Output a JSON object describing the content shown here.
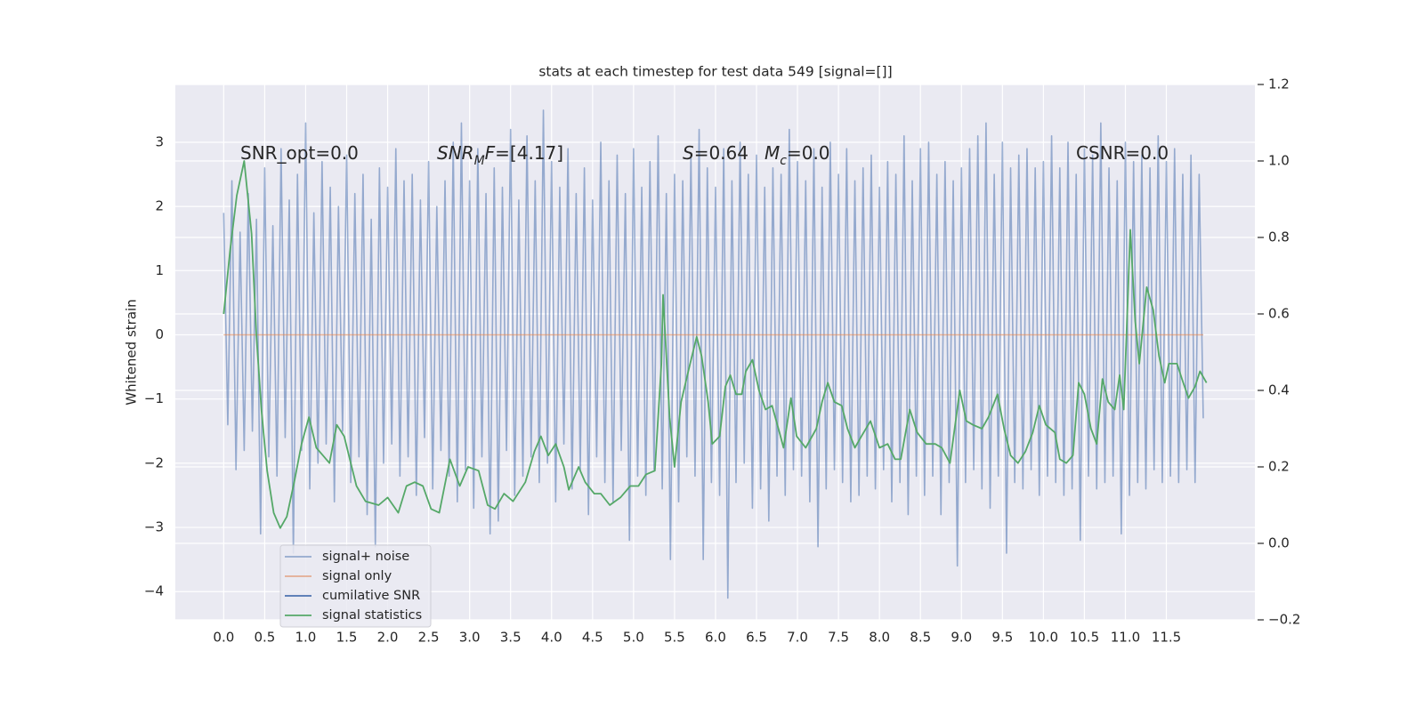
{
  "chart_data": {
    "type": "line",
    "title": "stats at each timestep for test data 549 [signal=[]]",
    "ylabel": "Whitened strain",
    "xlim": [
      -0.59,
      12.58
    ],
    "ylim": [
      -4.44,
      3.9
    ],
    "y2lim": [
      -0.2,
      1.2
    ],
    "grid": true,
    "legend": "lower left",
    "xticks": [
      {
        "value": 0,
        "label": "0.0"
      },
      {
        "value": 0.5,
        "label": "0.5"
      },
      {
        "value": 1,
        "label": "1.0"
      },
      {
        "value": 1.5,
        "label": "1.5"
      },
      {
        "value": 2,
        "label": "2.0"
      },
      {
        "value": 2.5,
        "label": "2.5"
      },
      {
        "value": 3,
        "label": "3.0"
      },
      {
        "value": 3.5,
        "label": "3.5"
      },
      {
        "value": 4,
        "label": "4.0"
      },
      {
        "value": 4.5,
        "label": "4.5"
      },
      {
        "value": 5,
        "label": "5.0"
      },
      {
        "value": 5.5,
        "label": "5.5"
      },
      {
        "value": 6,
        "label": "6.0"
      },
      {
        "value": 6.5,
        "label": "6.5"
      },
      {
        "value": 7,
        "label": "7.0"
      },
      {
        "value": 7.5,
        "label": "7.5"
      },
      {
        "value": 8,
        "label": "8.0"
      },
      {
        "value": 8.5,
        "label": "8.5"
      },
      {
        "value": 9,
        "label": "9.0"
      },
      {
        "value": 9.5,
        "label": "9.5"
      },
      {
        "value": 10,
        "label": "10.0"
      },
      {
        "value": 10.5,
        "label": "10.5"
      },
      {
        "value": 11,
        "label": "11.0"
      },
      {
        "value": 11.5,
        "label": "11.5"
      }
    ],
    "yticks": [
      {
        "value": -4,
        "label": "−4"
      },
      {
        "value": -3,
        "label": "−3"
      },
      {
        "value": -2,
        "label": "−2"
      },
      {
        "value": -1,
        "label": "−1"
      },
      0,
      1,
      2,
      3
    ],
    "y2ticks": [
      {
        "value": -0.2,
        "label": "−0.2"
      },
      {
        "value": 0,
        "label": "0.0"
      },
      0.2,
      0.4,
      0.6,
      0.8,
      {
        "value": 1,
        "label": "1.0"
      },
      1.2
    ],
    "annotations": [
      {
        "parts": [
          {
            "text": "SNR_opt=0.0"
          }
        ]
      },
      {
        "parts": [
          {
            "text": "SNR",
            "italic": true
          },
          {
            "text": "M",
            "italic": true,
            "sub": true
          },
          {
            "text": "F",
            "italic": true
          },
          {
            "text": "=[4.17]"
          }
        ]
      },
      {
        "parts": [
          {
            "text": "S",
            "italic": true
          },
          {
            "text": "=0.64"
          }
        ]
      },
      {
        "parts": [
          {
            "text": "M",
            "italic": true
          },
          {
            "text": "c",
            "italic": true,
            "sub": true
          },
          {
            "text": "=0.0"
          }
        ]
      },
      {
        "parts": [
          {
            "text": "CSNR=0.0"
          }
        ]
      }
    ],
    "series": [
      {
        "name": "signal+ noise",
        "color": "#4c72b0",
        "alpha": 0.55,
        "axis": "y",
        "x": [
          0,
          0.05,
          0.1,
          0.15,
          0.2,
          0.25,
          0.3,
          0.35,
          0.4,
          0.45,
          0.5,
          0.55,
          0.6,
          0.65,
          0.7,
          0.75,
          0.8,
          0.85,
          0.9,
          0.95,
          1,
          1.05,
          1.1,
          1.15,
          1.2,
          1.25,
          1.3,
          1.35,
          1.4,
          1.45,
          1.5,
          1.55,
          1.6,
          1.65,
          1.7,
          1.75,
          1.8,
          1.85,
          1.9,
          1.95,
          2,
          2.05,
          2.1,
          2.15,
          2.2,
          2.25,
          2.3,
          2.35,
          2.4,
          2.45,
          2.5,
          2.55,
          2.6,
          2.65,
          2.7,
          2.75,
          2.8,
          2.85,
          2.9,
          2.95,
          3,
          3.05,
          3.1,
          3.15,
          3.2,
          3.25,
          3.3,
          3.35,
          3.4,
          3.45,
          3.5,
          3.55,
          3.6,
          3.65,
          3.7,
          3.75,
          3.8,
          3.85,
          3.9,
          3.95,
          4,
          4.05,
          4.1,
          4.15,
          4.2,
          4.25,
          4.3,
          4.35,
          4.4,
          4.45,
          4.5,
          4.55,
          4.6,
          4.65,
          4.7,
          4.75,
          4.8,
          4.85,
          4.9,
          4.95,
          5,
          5.05,
          5.1,
          5.15,
          5.2,
          5.25,
          5.3,
          5.35,
          5.4,
          5.45,
          5.5,
          5.55,
          5.6,
          5.65,
          5.7,
          5.75,
          5.8,
          5.85,
          5.9,
          5.95,
          6,
          6.05,
          6.1,
          6.15,
          6.2,
          6.25,
          6.3,
          6.35,
          6.4,
          6.45,
          6.5,
          6.55,
          6.6,
          6.65,
          6.7,
          6.75,
          6.8,
          6.85,
          6.9,
          6.95,
          7,
          7.05,
          7.1,
          7.15,
          7.2,
          7.25,
          7.3,
          7.35,
          7.4,
          7.45,
          7.5,
          7.55,
          7.6,
          7.65,
          7.7,
          7.75,
          7.8,
          7.85,
          7.9,
          7.95,
          8,
          8.05,
          8.1,
          8.15,
          8.2,
          8.25,
          8.3,
          8.35,
          8.4,
          8.45,
          8.5,
          8.55,
          8.6,
          8.65,
          8.7,
          8.75,
          8.8,
          8.85,
          8.9,
          8.95,
          9,
          9.05,
          9.1,
          9.15,
          9.2,
          9.25,
          9.3,
          9.35,
          9.4,
          9.45,
          9.5,
          9.55,
          9.6,
          9.65,
          9.7,
          9.75,
          9.8,
          9.85,
          9.9,
          9.95,
          10,
          10.05,
          10.1,
          10.15,
          10.2,
          10.25,
          10.3,
          10.35,
          10.4,
          10.45,
          10.5,
          10.55,
          10.6,
          10.65,
          10.7,
          10.75,
          10.8,
          10.85,
          10.9,
          10.95,
          11,
          11.05,
          11.1,
          11.15,
          11.2,
          11.25,
          11.3,
          11.35,
          11.4,
          11.45,
          11.5,
          11.55,
          11.6,
          11.65,
          11.7,
          11.75,
          11.8,
          11.85,
          11.9,
          11.95
        ],
        "values": [
          1.9,
          -1.4,
          2.4,
          -2.1,
          1.6,
          -1.8,
          2.2,
          -1.5,
          1.8,
          -3.1,
          2.6,
          -1.9,
          1.7,
          -2.2,
          2.9,
          -1.6,
          2.1,
          -3.4,
          2.5,
          -1.8,
          3.3,
          -2.4,
          1.9,
          -2.0,
          2.7,
          -1.7,
          2.3,
          -2.6,
          2.0,
          -1.5,
          2.8,
          -2.3,
          2.2,
          -1.9,
          2.5,
          -2.8,
          1.8,
          -3.3,
          2.6,
          -2.0,
          2.3,
          -1.7,
          2.9,
          -2.2,
          2.4,
          -1.9,
          2.5,
          -2.5,
          2.1,
          -1.6,
          2.7,
          -2.4,
          2.0,
          -1.8,
          2.4,
          -2.2,
          3.0,
          -2.6,
          3.3,
          -2.1,
          2.4,
          -2.7,
          2.9,
          -1.9,
          2.2,
          -3.1,
          2.6,
          -2.9,
          2.3,
          -1.8,
          3.2,
          -2.5,
          2.1,
          -2.2,
          3.1,
          -1.9,
          2.4,
          -2.3,
          3.5,
          -2.0,
          2.7,
          -2.6,
          2.3,
          -1.7,
          2.9,
          -2.4,
          2.2,
          -2.1,
          2.6,
          -2.8,
          2.1,
          -1.9,
          3.0,
          -2.3,
          2.4,
          -2.6,
          2.8,
          -1.8,
          2.2,
          -3.2,
          2.9,
          -2.2,
          2.3,
          -2.5,
          2.7,
          -2.1,
          3.1,
          -2.4,
          2.2,
          -3.5,
          2.5,
          -2.6,
          2.4,
          -1.9,
          2.8,
          -2.2,
          3.2,
          -3.5,
          2.6,
          -2.3,
          2.3,
          -2.5,
          2.9,
          -4.1,
          2.4,
          -2.3,
          3.0,
          -2.0,
          2.5,
          -2.7,
          2.8,
          -2.4,
          2.3,
          -2.9,
          2.6,
          -2.2,
          2.5,
          -2.5,
          3.2,
          -2.1,
          2.7,
          -2.2,
          2.4,
          -2.6,
          2.9,
          -3.3,
          2.3,
          -2.4,
          3.0,
          -2.1,
          2.5,
          -2.3,
          2.9,
          -2.6,
          2.4,
          -2.5,
          2.6,
          -2.2,
          2.8,
          -2.4,
          2.3,
          -2.1,
          2.7,
          -2.6,
          2.5,
          -2.3,
          3.1,
          -2.8,
          2.4,
          -2.2,
          2.9,
          -2.5,
          3.0,
          -2.2,
          2.5,
          -2.8,
          2.7,
          -2.3,
          2.4,
          -3.6,
          2.6,
          -2.3,
          2.9,
          -2.1,
          3.1,
          -2.4,
          3.3,
          -2.7,
          2.5,
          -2.2,
          3.0,
          -3.4,
          2.6,
          -2.3,
          2.8,
          -2.4,
          2.9,
          -2.1,
          2.6,
          -2.5,
          2.7,
          -2.2,
          3.1,
          -2.3,
          2.6,
          -2.5,
          3.0,
          -2.4,
          2.5,
          -3.2,
          2.9,
          -2.2,
          2.8,
          -2.4,
          3.3,
          -2.3,
          2.6,
          -2.2,
          2.4,
          -3.1,
          3.0,
          -2.5,
          2.7,
          -2.3,
          2.8,
          -2.4,
          2.6,
          -2.1,
          3.1,
          -2.3,
          2.7,
          -2.2,
          2.9,
          -2.3,
          2.5,
          -2.1,
          2.8,
          -2.3,
          2.5,
          -1.3
        ]
      },
      {
        "name": "signal only",
        "color": "#dd8452",
        "alpha": 0.6,
        "axis": "y",
        "x": [
          0,
          11.95
        ],
        "values": [
          0,
          0
        ]
      },
      {
        "name": "cumilative SNR",
        "color": "#4c72b0",
        "alpha": 1,
        "axis": "y",
        "x": [],
        "values": []
      },
      {
        "name": "signal statistics",
        "color": "#55a868",
        "alpha": 1,
        "axis": "y2",
        "x": [
          0,
          0.08,
          0.16,
          0.25,
          0.34,
          0.4,
          0.46,
          0.53,
          0.61,
          0.69,
          0.77,
          0.86,
          0.95,
          1.04,
          1.13,
          1.21,
          1.29,
          1.38,
          1.47,
          1.55,
          1.62,
          1.73,
          1.89,
          2.0,
          2.13,
          2.23,
          2.33,
          2.43,
          2.53,
          2.63,
          2.76,
          2.88,
          2.98,
          3.11,
          3.22,
          3.31,
          3.42,
          3.53,
          3.68,
          3.79,
          3.87,
          3.96,
          4.05,
          4.15,
          4.21,
          4.33,
          4.41,
          4.52,
          4.6,
          4.71,
          4.84,
          4.96,
          5.06,
          5.15,
          5.26,
          5.34,
          5.36,
          5.44,
          5.5,
          5.58,
          5.69,
          5.77,
          5.83,
          5.91,
          5.96,
          6.05,
          6.12,
          6.18,
          6.25,
          6.32,
          6.37,
          6.45,
          6.53,
          6.61,
          6.69,
          6.78,
          6.83,
          6.92,
          6.99,
          7.1,
          7.23,
          7.3,
          7.37,
          7.45,
          7.54,
          7.61,
          7.7,
          7.78,
          7.89,
          8.0,
          8.1,
          8.19,
          8.26,
          8.37,
          8.46,
          8.57,
          8.68,
          8.76,
          8.86,
          8.98,
          9.06,
          9.14,
          9.25,
          9.33,
          9.44,
          9.52,
          9.6,
          9.69,
          9.78,
          9.87,
          9.95,
          10.03,
          10.14,
          10.2,
          10.28,
          10.36,
          10.43,
          10.5,
          10.58,
          10.65,
          10.72,
          10.79,
          10.87,
          10.93,
          10.98,
          11.06,
          11.12,
          11.17,
          11.26,
          11.34,
          11.41,
          11.48,
          11.53,
          11.63,
          11.69,
          11.77,
          11.85,
          11.91,
          11.99
        ],
        "values": [
          0.6,
          0.77,
          0.91,
          1.0,
          0.81,
          0.54,
          0.35,
          0.19,
          0.08,
          0.04,
          0.07,
          0.16,
          0.26,
          0.33,
          0.25,
          0.23,
          0.21,
          0.31,
          0.28,
          0.21,
          0.15,
          0.11,
          0.1,
          0.12,
          0.08,
          0.15,
          0.16,
          0.15,
          0.09,
          0.08,
          0.22,
          0.15,
          0.2,
          0.19,
          0.1,
          0.09,
          0.13,
          0.11,
          0.16,
          0.24,
          0.28,
          0.23,
          0.26,
          0.2,
          0.14,
          0.2,
          0.16,
          0.13,
          0.13,
          0.1,
          0.12,
          0.15,
          0.15,
          0.18,
          0.19,
          0.47,
          0.65,
          0.33,
          0.2,
          0.37,
          0.47,
          0.54,
          0.49,
          0.37,
          0.26,
          0.28,
          0.41,
          0.44,
          0.39,
          0.39,
          0.45,
          0.48,
          0.4,
          0.35,
          0.36,
          0.29,
          0.25,
          0.38,
          0.28,
          0.25,
          0.3,
          0.37,
          0.42,
          0.37,
          0.36,
          0.3,
          0.25,
          0.28,
          0.32,
          0.25,
          0.26,
          0.22,
          0.22,
          0.35,
          0.29,
          0.26,
          0.26,
          0.25,
          0.21,
          0.4,
          0.32,
          0.31,
          0.3,
          0.33,
          0.39,
          0.3,
          0.23,
          0.21,
          0.24,
          0.29,
          0.36,
          0.31,
          0.29,
          0.22,
          0.21,
          0.23,
          0.42,
          0.39,
          0.3,
          0.26,
          0.43,
          0.37,
          0.35,
          0.44,
          0.35,
          0.82,
          0.58,
          0.47,
          0.67,
          0.61,
          0.49,
          0.42,
          0.47,
          0.47,
          0.43,
          0.38,
          0.41,
          0.45,
          0.42
        ]
      }
    ]
  }
}
